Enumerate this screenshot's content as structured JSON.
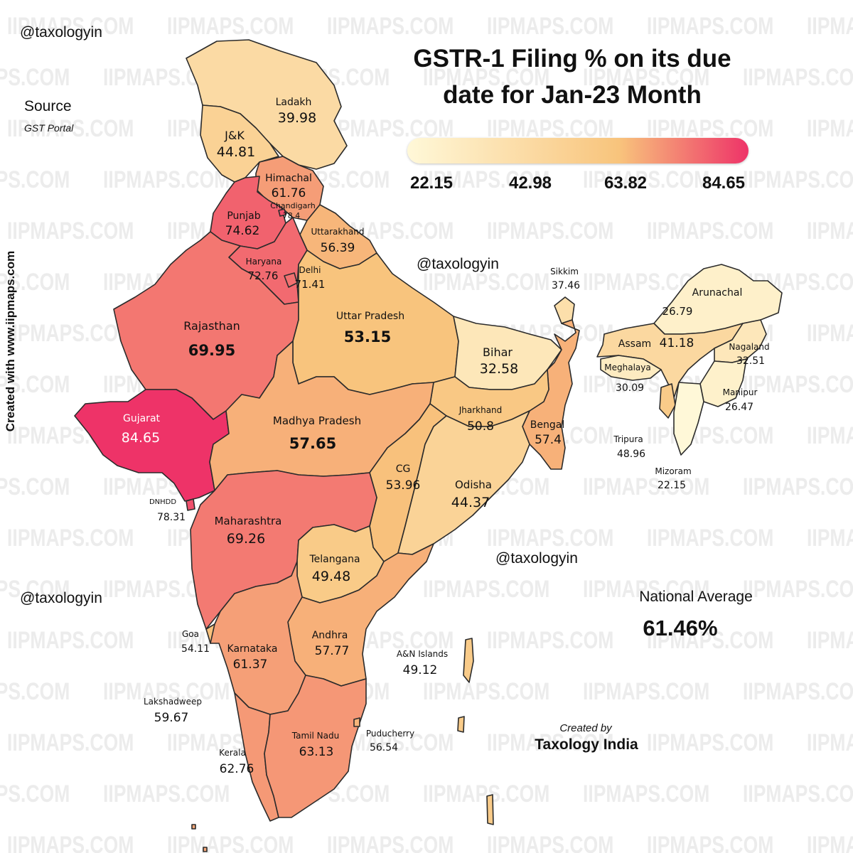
{
  "title_line1": "GSTR-1 Filing % on its due",
  "title_line2": "date for Jan-23 Month",
  "handle": "@taxologyin",
  "source_label": "Source",
  "source_value": "GST Portal",
  "side_credit": "Created with www.iipmaps.com",
  "watermark_text": "IIPMAPS.COM",
  "legend": {
    "ticks": [
      "22.15",
      "42.98",
      "63.82",
      "84.65"
    ],
    "color_min": "#fff8d8",
    "color_mid": "#f8c47c",
    "color_max": "#ee3368"
  },
  "national_average_label": "National Average",
  "national_average_value": "61.46%",
  "created_by_label": "Created by",
  "created_by_value": "Taxology India",
  "states": [
    {
      "name": "Ladakh",
      "value": "39.98"
    },
    {
      "name": "J&K",
      "value": "44.81"
    },
    {
      "name": "Himachal",
      "value": "61.76"
    },
    {
      "name": "Chandigarh",
      "value": "78.4"
    },
    {
      "name": "Punjab",
      "value": "74.62"
    },
    {
      "name": "Uttarakhand",
      "value": "56.39"
    },
    {
      "name": "Haryana",
      "value": "72.76"
    },
    {
      "name": "Delhi",
      "value": "71.41"
    },
    {
      "name": "Rajasthan",
      "value": "69.95"
    },
    {
      "name": "Uttar Pradesh",
      "value": "53.15"
    },
    {
      "name": "Bihar",
      "value": "32.58"
    },
    {
      "name": "Sikkim",
      "value": "37.46"
    },
    {
      "name": "Arunachal",
      "value": "26.79"
    },
    {
      "name": "Assam",
      "value": "41.18"
    },
    {
      "name": "Nagaland",
      "value": "32.51"
    },
    {
      "name": "Meghalaya",
      "value": "30.09"
    },
    {
      "name": "Manipur",
      "value": "26.47"
    },
    {
      "name": "Gujarat",
      "value": "84.65"
    },
    {
      "name": "Madhya Pradesh",
      "value": "57.65"
    },
    {
      "name": "Jharkhand",
      "value": "50.8"
    },
    {
      "name": "Bengal",
      "value": "57.4"
    },
    {
      "name": "Tripura",
      "value": "48.96"
    },
    {
      "name": "Mizoram",
      "value": "22.15"
    },
    {
      "name": "CG",
      "value": "53.96"
    },
    {
      "name": "Odisha",
      "value": "44.37"
    },
    {
      "name": "DNHDD",
      "value": "78.31"
    },
    {
      "name": "Maharashtra",
      "value": "69.26"
    },
    {
      "name": "Telangana",
      "value": "49.48"
    },
    {
      "name": "Goa",
      "value": "54.11"
    },
    {
      "name": "Karnataka",
      "value": "61.37"
    },
    {
      "name": "Andhra",
      "value": "57.77"
    },
    {
      "name": "A&N Islands",
      "value": "49.12"
    },
    {
      "name": "Lakshadweep",
      "value": "59.67"
    },
    {
      "name": "Tamil Nadu",
      "value": "63.13"
    },
    {
      "name": "Puducherry",
      "value": "56.54"
    },
    {
      "name": "Kerala",
      "value": "62.76"
    }
  ]
}
